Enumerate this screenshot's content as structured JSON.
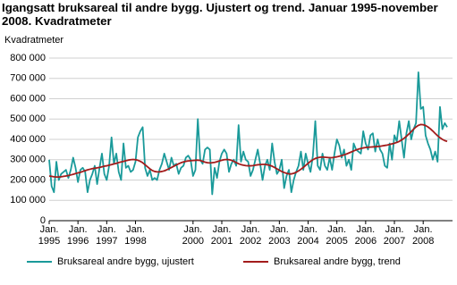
{
  "chart_data": {
    "type": "line",
    "title": "Igangsatt bruksareal til andre bygg. Ujustert og trend. Januar 1995-november 2008. Kvadratmeter",
    "y_label": "Kvadratmeter",
    "categories": [
      "Jan. 1995",
      null,
      null,
      null,
      null,
      null,
      null,
      null,
      null,
      null,
      null,
      null,
      "Jan. 1996",
      null,
      null,
      null,
      null,
      null,
      null,
      null,
      null,
      null,
      null,
      null,
      "Jan. 1997",
      null,
      null,
      null,
      null,
      null,
      null,
      null,
      null,
      null,
      null,
      null,
      "Jan. 1998",
      null,
      null,
      null,
      null,
      null,
      null,
      null,
      null,
      null,
      null,
      null,
      null,
      null,
      null,
      null,
      null,
      null,
      null,
      null,
      null,
      null,
      null,
      null,
      "Jan. 2000",
      null,
      null,
      null,
      null,
      null,
      null,
      null,
      null,
      null,
      null,
      null,
      "Jan. 2001",
      null,
      null,
      null,
      null,
      null,
      null,
      null,
      null,
      null,
      null,
      null,
      "Jan. 2002",
      null,
      null,
      null,
      null,
      null,
      null,
      null,
      null,
      null,
      null,
      null,
      "Jan. 2003",
      null,
      null,
      null,
      null,
      null,
      null,
      null,
      null,
      null,
      null,
      null,
      "Jan. 2004",
      null,
      null,
      null,
      null,
      null,
      null,
      null,
      null,
      null,
      null,
      null,
      "Jan. 2005",
      null,
      null,
      null,
      null,
      null,
      null,
      null,
      null,
      null,
      null,
      null,
      "Jan. 2006",
      null,
      null,
      null,
      null,
      null,
      null,
      null,
      null,
      null,
      null,
      null,
      "Jan. 2007",
      null,
      null,
      null,
      null,
      null,
      null,
      null,
      null,
      null,
      null,
      null,
      "Jan. 2008",
      null,
      null,
      null,
      null,
      null,
      null,
      null,
      null,
      null,
      null
    ],
    "series": [
      {
        "name": "Bruksareal andre bygg, ujustert",
        "color": "#1a9a9a",
        "values": [
          300000,
          170000,
          140000,
          290000,
          200000,
          230000,
          240000,
          250000,
          210000,
          250000,
          310000,
          260000,
          190000,
          250000,
          260000,
          240000,
          140000,
          200000,
          230000,
          270000,
          180000,
          260000,
          330000,
          230000,
          200000,
          270000,
          410000,
          280000,
          330000,
          240000,
          200000,
          380000,
          260000,
          270000,
          240000,
          250000,
          290000,
          410000,
          440000,
          460000,
          260000,
          220000,
          250000,
          200000,
          210000,
          200000,
          250000,
          280000,
          330000,
          290000,
          250000,
          310000,
          270000,
          280000,
          230000,
          260000,
          270000,
          310000,
          320000,
          300000,
          220000,
          250000,
          500000,
          300000,
          280000,
          350000,
          360000,
          350000,
          130000,
          260000,
          210000,
          290000,
          330000,
          350000,
          330000,
          240000,
          280000,
          300000,
          270000,
          470000,
          290000,
          340000,
          300000,
          290000,
          220000,
          250000,
          300000,
          350000,
          280000,
          200000,
          270000,
          300000,
          250000,
          380000,
          290000,
          230000,
          250000,
          300000,
          160000,
          220000,
          250000,
          140000,
          200000,
          240000,
          270000,
          340000,
          250000,
          330000,
          280000,
          240000,
          320000,
          490000,
          270000,
          250000,
          330000,
          270000,
          250000,
          310000,
          250000,
          330000,
          400000,
          370000,
          310000,
          350000,
          270000,
          300000,
          250000,
          380000,
          350000,
          340000,
          330000,
          440000,
          380000,
          350000,
          420000,
          430000,
          340000,
          400000,
          350000,
          330000,
          270000,
          260000,
          380000,
          300000,
          420000,
          390000,
          490000,
          400000,
          310000,
          430000,
          490000,
          400000,
          450000,
          480000,
          730000,
          550000,
          560000,
          420000,
          380000,
          350000,
          300000,
          340000,
          290000,
          560000,
          450000,
          480000,
          460000
        ]
      },
      {
        "name": "Bruksareal andre bygg, trend",
        "color": "#a31c1c",
        "values": [
          220000,
          218000,
          216000,
          215000,
          215000,
          216000,
          218000,
          220000,
          222000,
          225000,
          228000,
          232000,
          235000,
          238000,
          242000,
          246000,
          250000,
          253000,
          256000,
          258000,
          260000,
          262000,
          265000,
          268000,
          270000,
          273000,
          276000,
          279000,
          282000,
          286000,
          289000,
          292000,
          295000,
          298000,
          300000,
          301000,
          300000,
          297000,
          292000,
          285000,
          275000,
          265000,
          255000,
          247000,
          242000,
          240000,
          240000,
          242000,
          245000,
          250000,
          256000,
          262000,
          268000,
          274000,
          280000,
          285000,
          289000,
          292000,
          294000,
          295000,
          296000,
          297000,
          298000,
          296000,
          292000,
          288000,
          285000,
          284000,
          285000,
          287000,
          290000,
          294000,
          297000,
          300000,
          301000,
          300000,
          297000,
          292000,
          286000,
          280000,
          276000,
          273000,
          271000,
          270000,
          270000,
          271000,
          273000,
          275000,
          276000,
          277000,
          277000,
          275000,
          272000,
          268000,
          262000,
          255000,
          248000,
          242000,
          237000,
          233000,
          230000,
          230000,
          233000,
          238000,
          245000,
          253000,
          262000,
          272000,
          282000,
          292000,
          300000,
          306000,
          310000,
          312000,
          313000,
          312000,
          311000,
          310000,
          310000,
          312000,
          314000,
          317000,
          320000,
          324000,
          328000,
          333000,
          338000,
          343000,
          348000,
          352000,
          355000,
          358000,
          360000,
          361000,
          362000,
          363000,
          364000,
          365000,
          366000,
          368000,
          370000,
          372000,
          375000,
          378000,
          381000,
          385000,
          390000,
          397000,
          405000,
          415000,
          426000,
          438000,
          450000,
          461000,
          469000,
          473000,
          472000,
          468000,
          461000,
          452000,
          441000,
          429000,
          418000,
          408000,
          400000,
          394000,
          390000
        ]
      }
    ],
    "ylim": [
      0,
      800000
    ],
    "yticks": [
      0,
      {
        "value": 100000,
        "label": "100 000"
      },
      {
        "value": 200000,
        "label": "200 000"
      },
      {
        "value": 300000,
        "label": "300 000"
      },
      {
        "value": 400000,
        "label": "400 000"
      },
      {
        "value": 500000,
        "label": "500 000"
      },
      {
        "value": 600000,
        "label": "600 000"
      },
      {
        "value": 700000,
        "label": "700 000"
      },
      {
        "value": 800000,
        "label": "800 000"
      }
    ],
    "grid": true,
    "legend": "bottom"
  }
}
